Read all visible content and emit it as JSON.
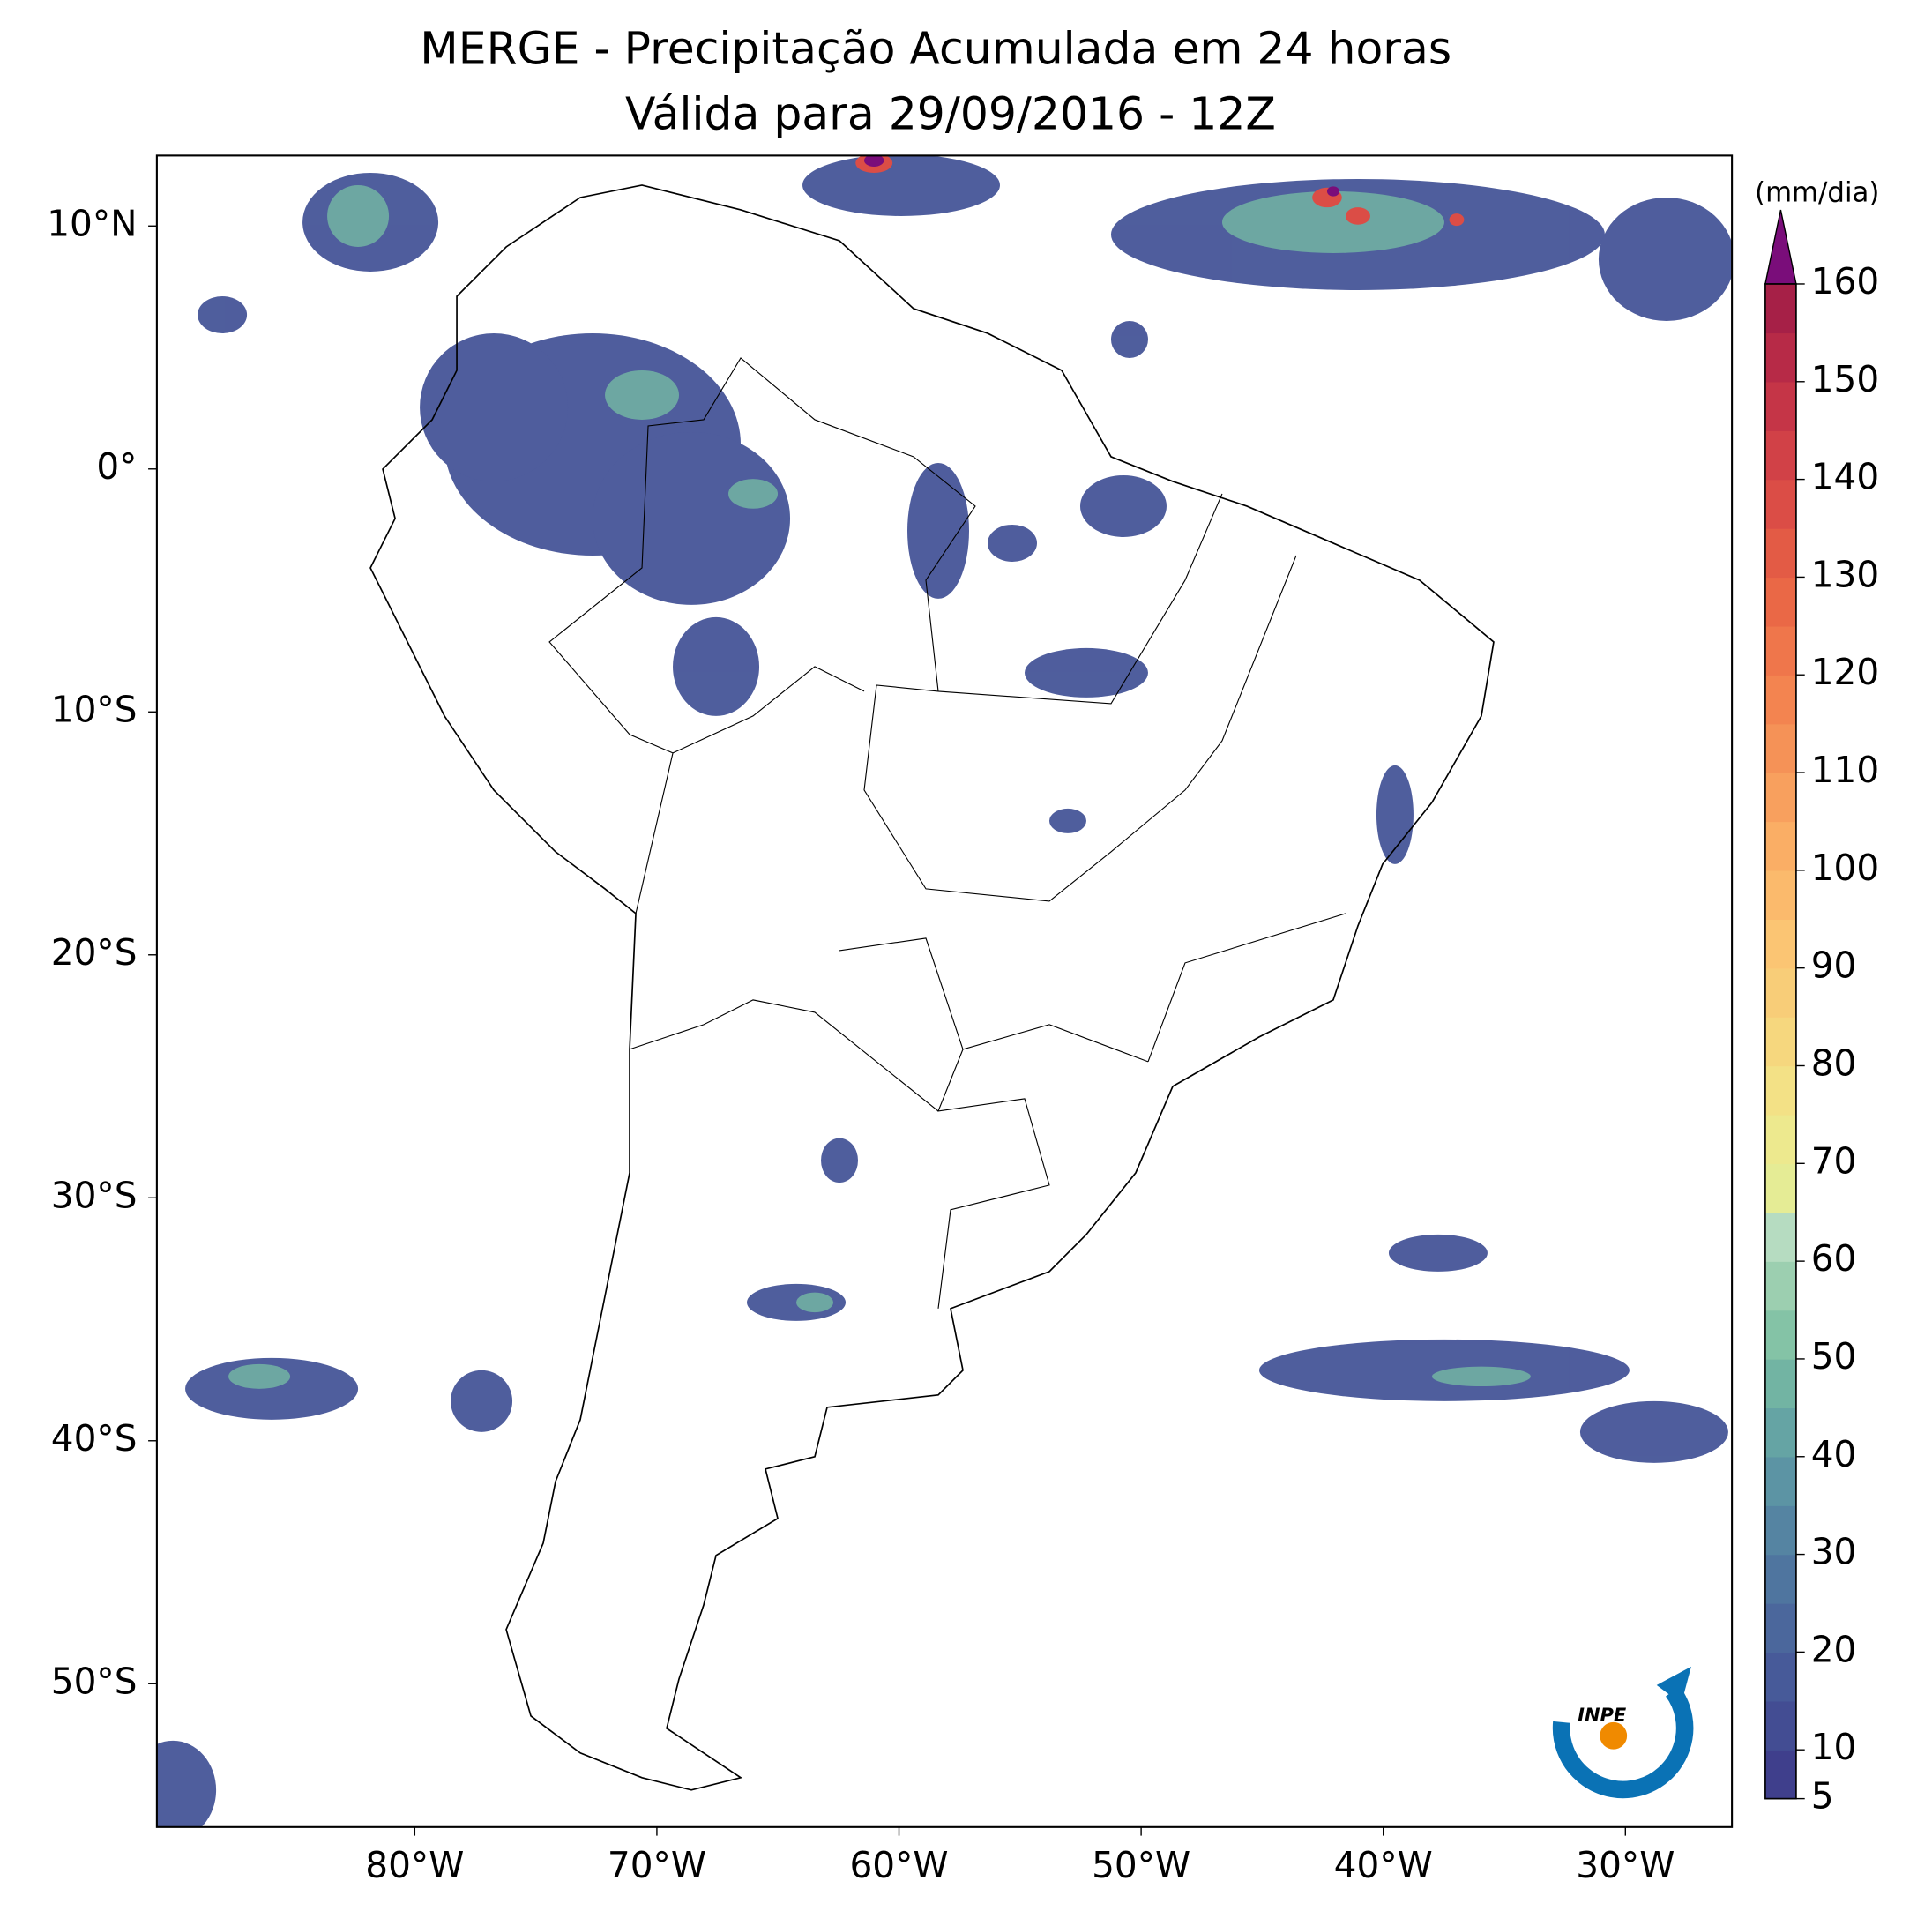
{
  "title": "MERGE - Precipitação Acumulada em 24 horas",
  "subtitle": "Válida para 29/09/2016 - 12Z",
  "logo": "INPE",
  "map": {
    "xlim": [
      -90.65,
      -25.6
    ],
    "ylim": [
      -55.9,
      12.9
    ],
    "xticks": [
      {
        "value": -80,
        "label": "80°W"
      },
      {
        "value": -70,
        "label": "70°W"
      },
      {
        "value": -60,
        "label": "60°W"
      },
      {
        "value": -50,
        "label": "50°W"
      },
      {
        "value": -40,
        "label": "40°W"
      },
      {
        "value": -30,
        "label": "30°W"
      }
    ],
    "yticks": [
      {
        "value": 10,
        "label": "10°N"
      },
      {
        "value": 0,
        "label": "0°"
      },
      {
        "value": -10,
        "label": "10°S"
      },
      {
        "value": -20,
        "label": "20°S"
      },
      {
        "value": -30,
        "label": "30°S"
      },
      {
        "value": -40,
        "label": "40°S"
      },
      {
        "value": -50,
        "label": "50°S"
      }
    ]
  },
  "colorbar": {
    "label": "(mm/dia)",
    "clim": [
      5,
      160
    ],
    "ticks": [
      5,
      10,
      20,
      30,
      40,
      50,
      60,
      70,
      80,
      90,
      100,
      110,
      120,
      130,
      140,
      150,
      160
    ],
    "colors": [
      "#3f3f8c",
      "#434d93",
      "#475a99",
      "#4b679c",
      "#4f759f",
      "#5584a2",
      "#5c94a4",
      "#65a4a4",
      "#72b4a3",
      "#84c3a6",
      "#9ccfb0",
      "#b6dcc1",
      "#e5ec95",
      "#ede98e",
      "#f3e186",
      "#f6d77e",
      "#f8cd78",
      "#fbc573",
      "#fbba6c",
      "#faae65",
      "#f8a05e",
      "#f59257",
      "#f38450",
      "#ef764b",
      "#ea6846",
      "#e35b45",
      "#db4d46",
      "#d14147",
      "#c53547",
      "#b72a47",
      "#a62047"
    ],
    "extend_color": "#7a0d7a"
  }
}
